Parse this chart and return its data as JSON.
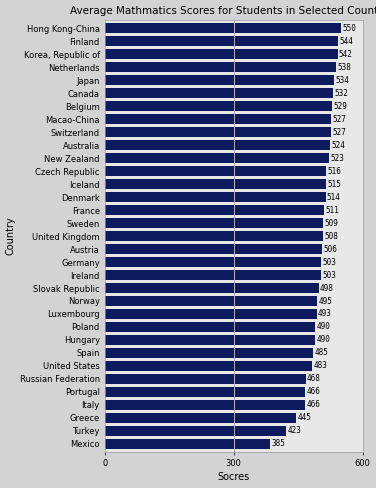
{
  "title": "Average Mathmatics Scores for Students in Selected Countries",
  "xlabel": "Socres",
  "ylabel": "Country",
  "xlim": [
    0,
    600
  ],
  "xticks": [
    0,
    300,
    600
  ],
  "bar_color": "#0D1B5E",
  "background_color": "#D3D3D3",
  "plot_bg_color": "#E8E8E8",
  "vline_x": 300,
  "vline_color": "#AAAAAA",
  "countries": [
    "Hong Kong-China",
    "Finland",
    "Korea, Republic of",
    "Netherlands",
    "Japan",
    "Canada",
    "Belgium",
    "Macao-China",
    "Switzerland",
    "Australia",
    "New Zealand",
    "Czech Republic",
    "Iceland",
    "Denmark",
    "France",
    "Sweden",
    "United Kingdom",
    "Austria",
    "Germany",
    "Ireland",
    "Slovak Republic",
    "Norway",
    "Luxembourg",
    "Poland",
    "Hungary",
    "Spain",
    "United States",
    "Russian Federation",
    "Portugal",
    "Italy",
    "Greece",
    "Turkey",
    "Mexico"
  ],
  "scores": [
    550,
    544,
    542,
    538,
    534,
    532,
    529,
    527,
    527,
    524,
    523,
    516,
    515,
    514,
    511,
    509,
    508,
    506,
    503,
    503,
    498,
    495,
    493,
    490,
    490,
    485,
    483,
    468,
    466,
    466,
    445,
    423,
    385
  ],
  "title_fontsize": 7.5,
  "label_fontsize": 7,
  "tick_fontsize": 6,
  "value_fontsize": 5.5,
  "bar_height": 0.75
}
